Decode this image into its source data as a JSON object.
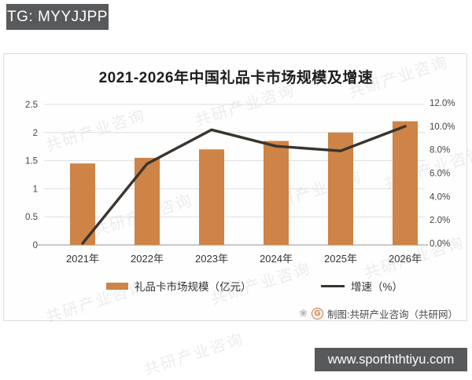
{
  "header": {
    "badge": "TG: MYYJJPP"
  },
  "watermark": {
    "text": "共研产业咨询"
  },
  "source": {
    "label": "制图:共研产业咨询（共研网）",
    "paw_icon": "❀",
    "logo_letter": "G"
  },
  "footer": {
    "site": "www.sporththtiyu.com"
  },
  "chart_data": {
    "type": "bar",
    "title": "2021-2026年中国礼品卡市场规模及增速",
    "categories": [
      "2021年",
      "2022年",
      "2023年",
      "2024年",
      "2025年",
      "2026年"
    ],
    "series": [
      {
        "name": "礼品卡市场规模（亿元）",
        "type": "bar",
        "axis": "left",
        "color": "#cd8446",
        "values": [
          1.45,
          1.55,
          1.7,
          1.85,
          2.0,
          2.2
        ]
      },
      {
        "name": "增速（%）",
        "type": "line",
        "axis": "right",
        "color": "#3a342e",
        "values": [
          0.0,
          6.8,
          9.7,
          8.3,
          7.9,
          10.0
        ]
      }
    ],
    "left_axis": {
      "min": 0,
      "max": 2.5,
      "tick_values": [
        0,
        0.5,
        1,
        1.5,
        2,
        2.5
      ],
      "tick_labels": [
        "0",
        "0.5",
        "1",
        "1.5",
        "2",
        "2.5"
      ]
    },
    "right_axis": {
      "min": 0,
      "max": 12,
      "tick_values": [
        0,
        2,
        4,
        6,
        8,
        10,
        12
      ],
      "tick_labels": [
        "0.0%",
        "2.0%",
        "4.0%",
        "6.0%",
        "8.0%",
        "10.0%",
        "12.0%"
      ]
    },
    "grid": true,
    "legend_position": "bottom"
  }
}
